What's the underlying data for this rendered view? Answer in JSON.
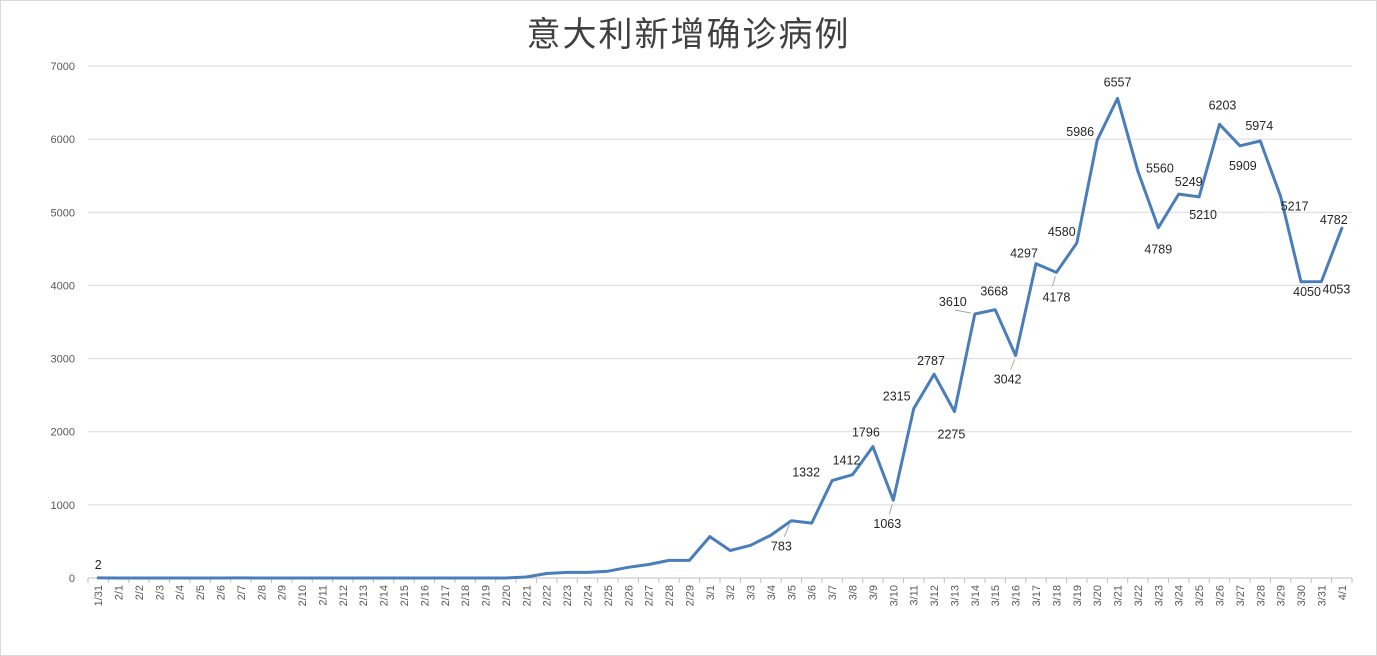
{
  "chart_data": {
    "type": "line",
    "title": "意大利新增确诊病例",
    "xlabel": "",
    "ylabel": "",
    "ylim": [
      0,
      7000
    ],
    "yticks": [
      0,
      1000,
      2000,
      3000,
      4000,
      5000,
      6000,
      7000
    ],
    "grid": true,
    "legend": "none",
    "line_color": "#4a7ebb",
    "categories": [
      "1/31",
      "2/1",
      "2/2",
      "2/3",
      "2/4",
      "2/5",
      "2/6",
      "2/7",
      "2/8",
      "2/9",
      "2/10",
      "2/11",
      "2/12",
      "2/13",
      "2/14",
      "2/15",
      "2/16",
      "2/17",
      "2/18",
      "2/19",
      "2/20",
      "2/21",
      "2/22",
      "2/23",
      "2/24",
      "2/25",
      "2/26",
      "2/27",
      "2/28",
      "2/29",
      "3/1",
      "3/2",
      "3/3",
      "3/4",
      "3/5",
      "3/6",
      "3/7",
      "3/8",
      "3/9",
      "3/10",
      "3/11",
      "3/12",
      "3/13",
      "3/14",
      "3/15",
      "3/16",
      "3/17",
      "3/18",
      "3/19",
      "3/20",
      "3/21",
      "3/22",
      "3/23",
      "3/24",
      "3/25",
      "3/26",
      "3/27",
      "3/28",
      "3/29",
      "3/30",
      "3/31",
      "4/1"
    ],
    "series": [
      {
        "values": [
          2,
          0,
          0,
          0,
          0,
          0,
          0,
          1,
          0,
          0,
          0,
          0,
          0,
          0,
          0,
          0,
          0,
          0,
          0,
          0,
          0,
          14,
          62,
          77,
          77,
          93,
          146,
          185,
          240,
          240,
          566,
          376,
          447,
          587,
          783,
          751,
          1332,
          1412,
          1796,
          1063,
          2315,
          2787,
          2275,
          3610,
          3668,
          3042,
          4297,
          4178,
          4580,
          5986,
          6557,
          5560,
          4789,
          5249,
          5210,
          6203,
          5909,
          5974,
          5217,
          4050,
          4053,
          4782
        ]
      }
    ],
    "data_labels": [
      {
        "category": "1/31",
        "text": "2"
      },
      {
        "category": "3/5",
        "text": "783"
      },
      {
        "category": "3/7",
        "text": "1332"
      },
      {
        "category": "3/8",
        "text": "1412"
      },
      {
        "category": "3/9",
        "text": "1796"
      },
      {
        "category": "3/10",
        "text": "1063"
      },
      {
        "category": "3/11",
        "text": "2315"
      },
      {
        "category": "3/12",
        "text": "2787"
      },
      {
        "category": "3/13",
        "text": "2275"
      },
      {
        "category": "3/14",
        "text": "3610"
      },
      {
        "category": "3/15",
        "text": "3668"
      },
      {
        "category": "3/16",
        "text": "3042"
      },
      {
        "category": "3/17",
        "text": "4297"
      },
      {
        "category": "3/18",
        "text": "4178"
      },
      {
        "category": "3/19",
        "text": "4580"
      },
      {
        "category": "3/20",
        "text": "5986"
      },
      {
        "category": "3/21",
        "text": "6557"
      },
      {
        "category": "3/22",
        "text": "5560"
      },
      {
        "category": "3/23",
        "text": "4789"
      },
      {
        "category": "3/24",
        "text": "5249"
      },
      {
        "category": "3/25",
        "text": "5210"
      },
      {
        "category": "3/26",
        "text": "6203"
      },
      {
        "category": "3/27",
        "text": "5909"
      },
      {
        "category": "3/28",
        "text": "5974"
      },
      {
        "category": "3/29",
        "text": "5217"
      },
      {
        "category": "3/30",
        "text": "4050"
      },
      {
        "category": "3/31",
        "text": "4053"
      },
      {
        "category": "4/1",
        "text": "4782"
      }
    ]
  }
}
